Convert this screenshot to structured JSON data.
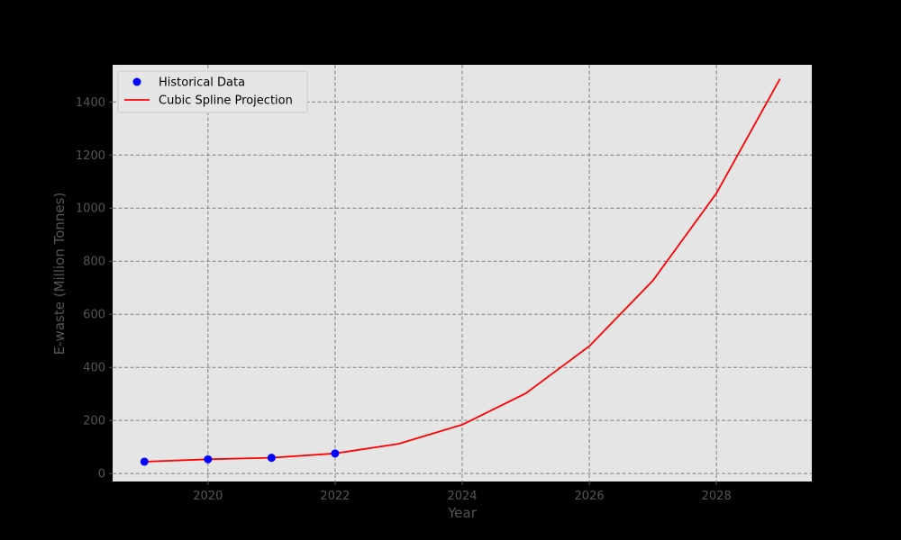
{
  "chart_data": {
    "type": "line",
    "title": "",
    "xlabel": "Year",
    "ylabel": "E-waste (Million Tonnes)",
    "xlim": [
      2018.5,
      2029.5
    ],
    "ylim": [
      -30,
      1540
    ],
    "x_ticks": [
      2020,
      2022,
      2024,
      2026,
      2028
    ],
    "y_ticks": [
      0,
      200,
      400,
      600,
      800,
      1000,
      1200,
      1400
    ],
    "grid": true,
    "legend_position": "top-left",
    "series": [
      {
        "name": "Historical Data",
        "kind": "scatter",
        "color": "#0000ff",
        "x": [
          2019,
          2020,
          2021,
          2022
        ],
        "y": [
          44.7,
          53.6,
          59.4,
          75.7
        ]
      },
      {
        "name": "Cubic Spline Projection",
        "kind": "line",
        "color": "#ff0000",
        "x": [
          2019,
          2020,
          2021,
          2022,
          2023,
          2024,
          2025,
          2026,
          2027,
          2028,
          2029
        ],
        "y": [
          44.7,
          53.6,
          59.4,
          75.7,
          112,
          184,
          302,
          480,
          727,
          1056,
          1487
        ]
      }
    ],
    "colors": {
      "figure_background": "#000000",
      "plot_background": "#e5e5e5",
      "grid": "#808080",
      "text": "#555555"
    }
  }
}
